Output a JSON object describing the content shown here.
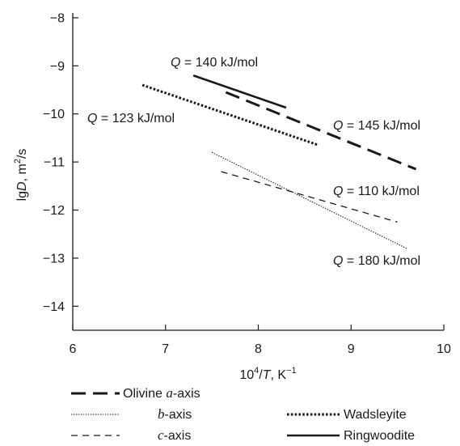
{
  "chart_data": {
    "type": "line",
    "xlabel": {
      "prefix": "10",
      "sup1": "4",
      "slash": "/",
      "var": "T",
      "unit": ", K",
      "sup2": "−1"
    },
    "ylabel": {
      "prefix": "lg",
      "var": "D",
      "unit": ", m",
      "sup": "2",
      "suffix": "/s"
    },
    "xlim": [
      6,
      10
    ],
    "ylim": [
      -14.5,
      -7.9
    ],
    "xticks": [
      6,
      7,
      8,
      9,
      10
    ],
    "yticks": [
      -8,
      -9,
      -10,
      -11,
      -12,
      -13,
      -14
    ],
    "ytick_labels": [
      "−8",
      "−9",
      "−10",
      "−11",
      "−12",
      "−13",
      "−14"
    ],
    "grid": false,
    "series": [
      {
        "name": "Olivine a-axis",
        "style": "long-dash",
        "weight": "bold",
        "x": [
          7.65,
          9.7
        ],
        "y": [
          -9.55,
          -11.15
        ],
        "q_label": {
          "var": "Q",
          "text": " = 145 kJ/mol"
        }
      },
      {
        "name": "b-axis",
        "style": "fine-dotted",
        "weight": "thin",
        "x": [
          7.5,
          9.6
        ],
        "y": [
          -10.8,
          -12.8
        ],
        "q_label": {
          "var": "Q",
          "text": " = 180 kJ/mol"
        }
      },
      {
        "name": "c-axis",
        "style": "short-dash",
        "weight": "thin",
        "x": [
          7.6,
          9.5
        ],
        "y": [
          -11.2,
          -12.25
        ],
        "q_label": {
          "var": "Q",
          "text": " = 110 kJ/mol"
        }
      },
      {
        "name": "Wadsleyite",
        "style": "dotted",
        "weight": "bold",
        "x": [
          6.75,
          8.65
        ],
        "y": [
          -9.4,
          -10.65
        ],
        "q_label": {
          "var": "Q",
          "text": " = 123 kJ/mol"
        }
      },
      {
        "name": "Ringwoodite",
        "style": "solid",
        "weight": "bold",
        "x": [
          7.3,
          8.3
        ],
        "y": [
          -9.2,
          -9.87
        ],
        "q_label": {
          "var": "Q",
          "text": " = 140 kJ/mol"
        }
      }
    ],
    "legend": {
      "placement": "bottom",
      "columns": [
        [
          {
            "series": "Olivine a-axis",
            "prefix": "Olivine ",
            "italic": "a",
            "suffix": "-axis"
          },
          {
            "series": "b-axis",
            "prefix": "",
            "italic": "b",
            "suffix": "-axis"
          },
          {
            "series": "c-axis",
            "prefix": "",
            "italic": "c",
            "suffix": "-axis"
          }
        ],
        [
          {
            "series": "Wadsleyite",
            "prefix": "Wadsleyite",
            "italic": "",
            "suffix": ""
          },
          {
            "series": "Ringwoodite",
            "prefix": "Ringwoodite",
            "italic": "",
            "suffix": ""
          }
        ]
      ]
    },
    "colors": {
      "ink": "#1a1a1a",
      "background": "#ffffff"
    }
  }
}
